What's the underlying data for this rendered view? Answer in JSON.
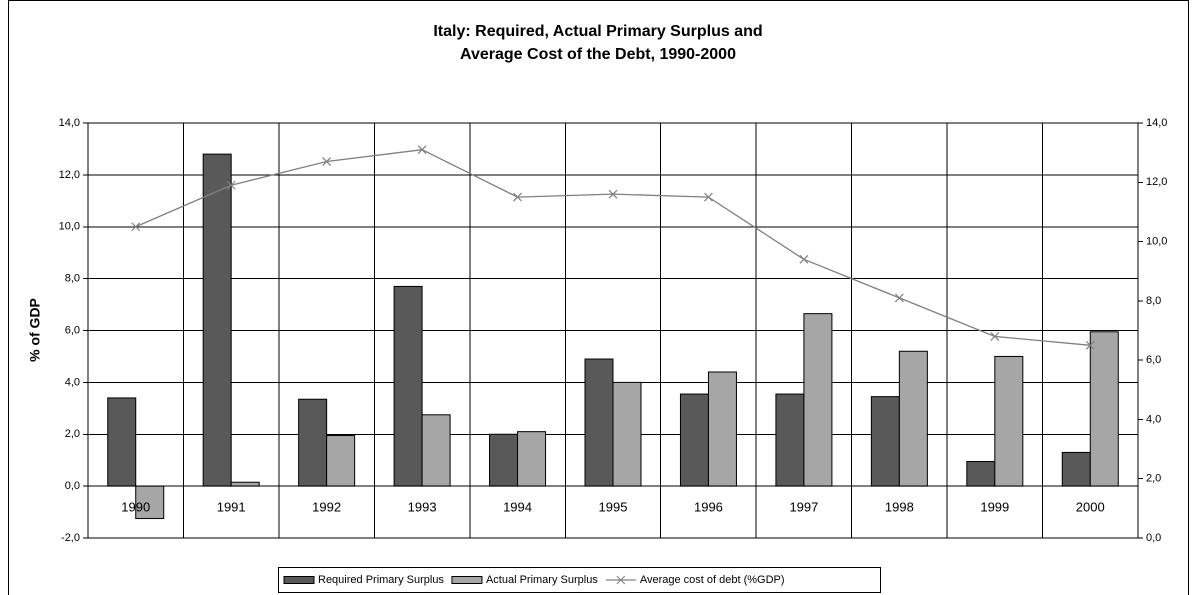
{
  "chart_data": {
    "type": "bar",
    "title": [
      "Italy: Required, Actual Primary Surplus and",
      "Average Cost of the Debt, 1990-2000"
    ],
    "y_label": "% of GDP",
    "categories": [
      "1990",
      "1991",
      "1992",
      "1993",
      "1994",
      "1995",
      "1996",
      "1997",
      "1998",
      "1999",
      "2000"
    ],
    "series": [
      {
        "name": "Required Primary Surplus",
        "color": "#595959",
        "values": [
          3.4,
          12.8,
          3.35,
          7.7,
          2.0,
          4.9,
          3.55,
          3.55,
          3.45,
          0.95,
          1.3
        ]
      },
      {
        "name": "Actual Primary Surplus",
        "color": "#a6a6a6",
        "values": [
          -1.25,
          0.15,
          1.95,
          2.75,
          2.1,
          4.0,
          4.4,
          6.65,
          5.2,
          5.0,
          5.95
        ]
      },
      {
        "name": "Average cost of debt (%GDP)",
        "color": "#808080",
        "type": "line",
        "axis": "y2",
        "values": [
          10.5,
          11.9,
          12.7,
          13.1,
          11.5,
          11.6,
          11.5,
          9.4,
          8.1,
          6.8,
          6.5
        ]
      }
    ],
    "ylim": [
      -2,
      14
    ],
    "yticks": [
      {
        "value": -2,
        "label": "-2,0"
      },
      {
        "value": 0,
        "label": "0,0"
      },
      {
        "value": 2,
        "label": "2,0"
      },
      {
        "value": 4,
        "label": "4,0"
      },
      {
        "value": 6,
        "label": "6,0"
      },
      {
        "value": 8,
        "label": "8,0"
      },
      {
        "value": 10,
        "label": "10,0"
      },
      {
        "value": 12,
        "label": "12,0"
      },
      {
        "value": 14,
        "label": "14,0"
      }
    ],
    "y2lim": [
      0,
      14
    ],
    "y2ticks": [
      {
        "value": 0,
        "label": "0,0"
      },
      {
        "value": 2,
        "label": "2,0"
      },
      {
        "value": 4,
        "label": "4,0"
      },
      {
        "value": 6,
        "label": "6,0"
      },
      {
        "value": 8,
        "label": "8,0"
      },
      {
        "value": 10,
        "label": "10,0"
      },
      {
        "value": 12,
        "label": "12,0"
      },
      {
        "value": 14,
        "label": "14,0"
      }
    ],
    "grid": true,
    "legend": "bottom"
  }
}
